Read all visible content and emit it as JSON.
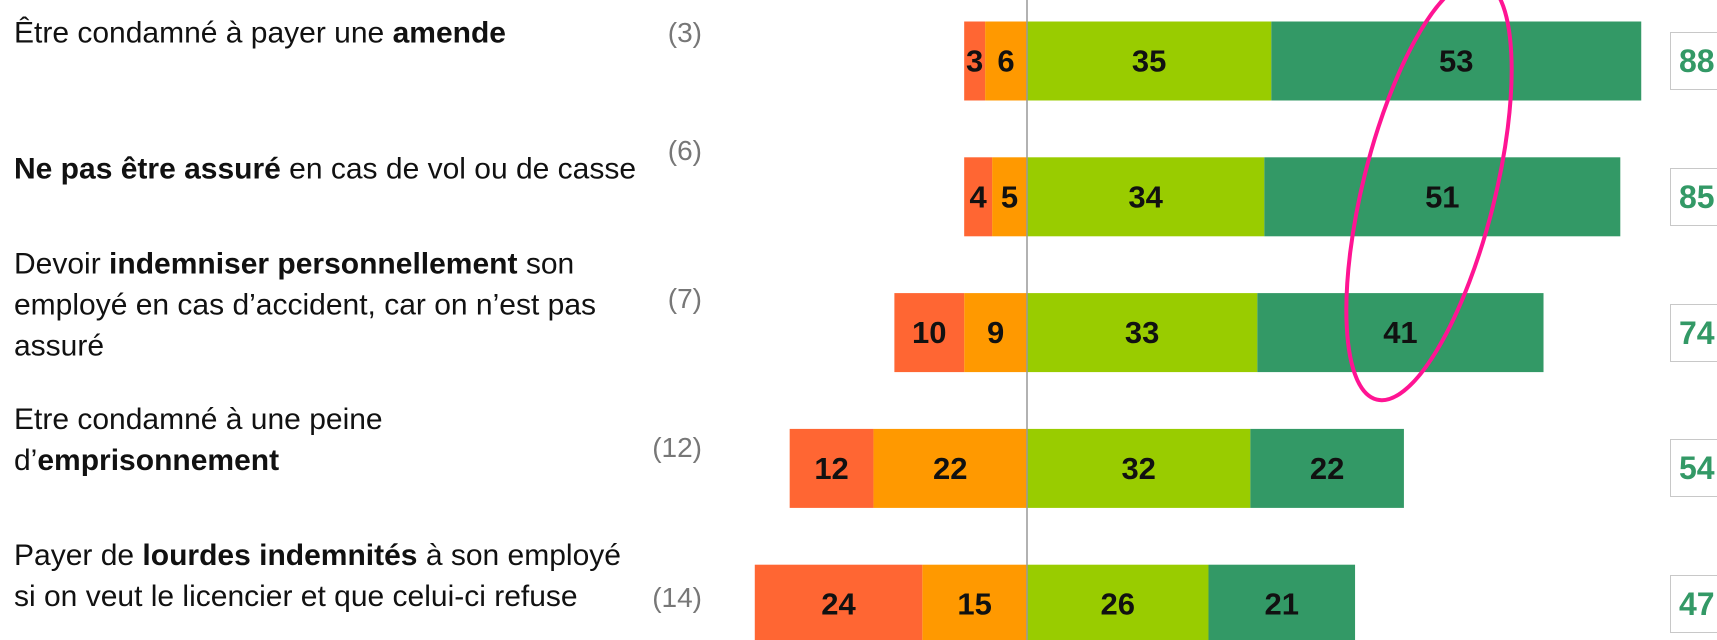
{
  "chart_data": {
    "type": "diverging_bar",
    "categories": [
      [
        {
          "text": "Être condamné à payer une ",
          "bold": false
        },
        {
          "text": "amende",
          "bold": true
        }
      ],
      [
        {
          "text": "Ne pas être assuré",
          "bold": true
        },
        {
          "text": " en cas de vol ou de casse",
          "bold": false
        }
      ],
      [
        {
          "text": "Devoir ",
          "bold": false
        },
        {
          "text": "indemniser personnellement",
          "bold": true
        },
        {
          "text": " son employé en cas d’accident, car on n’est pas assuré",
          "bold": false
        }
      ],
      [
        {
          "text": "Etre condamné à une peine d’",
          "bold": false
        },
        {
          "text": "emprisonnement",
          "bold": true
        }
      ],
      [
        {
          "text": "Payer de ",
          "bold": false
        },
        {
          "text": "lourdes indemnités",
          "bold": true
        },
        {
          "text": " à son employé si on veut le licencier et que celui-ci refuse",
          "bold": false
        }
      ]
    ],
    "notes": [
      "(3)",
      "(6)",
      "(7)",
      "(12)",
      "(14)"
    ],
    "series": [
      {
        "color": "#ff6633",
        "side": "left",
        "values": [
          3,
          4,
          10,
          12,
          24
        ]
      },
      {
        "color": "#ff9900",
        "side": "left",
        "values": [
          6,
          5,
          9,
          22,
          15
        ]
      },
      {
        "color": "#99cc00",
        "side": "right",
        "values": [
          35,
          34,
          33,
          32,
          26
        ]
      },
      {
        "color": "#339966",
        "side": "right",
        "values": [
          53,
          51,
          41,
          22,
          21
        ]
      }
    ],
    "totals": [
      88,
      85,
      74,
      54,
      47
    ],
    "totals_color": "#339966",
    "highlight_color": "#ff1493"
  }
}
